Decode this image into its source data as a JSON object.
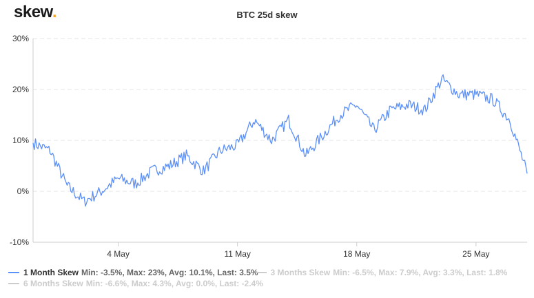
{
  "brand": {
    "name": "skew",
    "dot": ".",
    "dot_color": "#f5a623"
  },
  "chart_data": {
    "type": "line",
    "title": "BTC 25d skew",
    "xlabel": "",
    "ylabel": "",
    "ylim": [
      -10,
      30
    ],
    "y_ticks": [
      "30%",
      "20%",
      "10%",
      "0%",
      "-10%"
    ],
    "x_ticks": [
      "4 May",
      "11 May",
      "18 May",
      "25 May"
    ],
    "x_range": [
      "2020-04-29",
      "2020-05-28"
    ],
    "grid": "horizontal-dashed",
    "legend_position": "bottom",
    "series": [
      {
        "name": "1 Month Skew",
        "stats": "Min: -3.5%, Max: 23%, Avg: 10.1%, Last: 3.5%",
        "color": "#5b8ff9",
        "visible": true,
        "x": [
          "2020-04-29",
          "2020-04-30",
          "2020-05-01",
          "2020-05-02",
          "2020-05-03",
          "2020-05-04",
          "2020-05-05",
          "2020-05-06",
          "2020-05-07",
          "2020-05-08",
          "2020-05-09",
          "2020-05-10",
          "2020-05-11",
          "2020-05-12",
          "2020-05-13",
          "2020-05-14",
          "2020-05-15",
          "2020-05-16",
          "2020-05-17",
          "2020-05-18",
          "2020-05-19",
          "2020-05-20",
          "2020-05-21",
          "2020-05-22",
          "2020-05-23",
          "2020-05-24",
          "2020-05-25",
          "2020-05-26",
          "2020-05-27",
          "2020-05-28"
        ],
        "values": [
          9.5,
          8,
          1,
          -2,
          0,
          2.5,
          1.5,
          4,
          5,
          7,
          4,
          8,
          9,
          14,
          10,
          14,
          7,
          11,
          15,
          17,
          12,
          16,
          17,
          16,
          22,
          19,
          19,
          18,
          14,
          3.5
        ]
      },
      {
        "name": "3 Months Skew",
        "stats": "Min: -6.5%, Max: 7.9%, Avg: 3.3%, Last: 1.8%",
        "color": "#cccccc",
        "visible": false
      },
      {
        "name": "6 Months Skew",
        "stats": "Min: -6.6%, Max: 4.3%, Avg: 0.0%, Last: -2.4%",
        "color": "#cccccc",
        "visible": false
      }
    ]
  }
}
